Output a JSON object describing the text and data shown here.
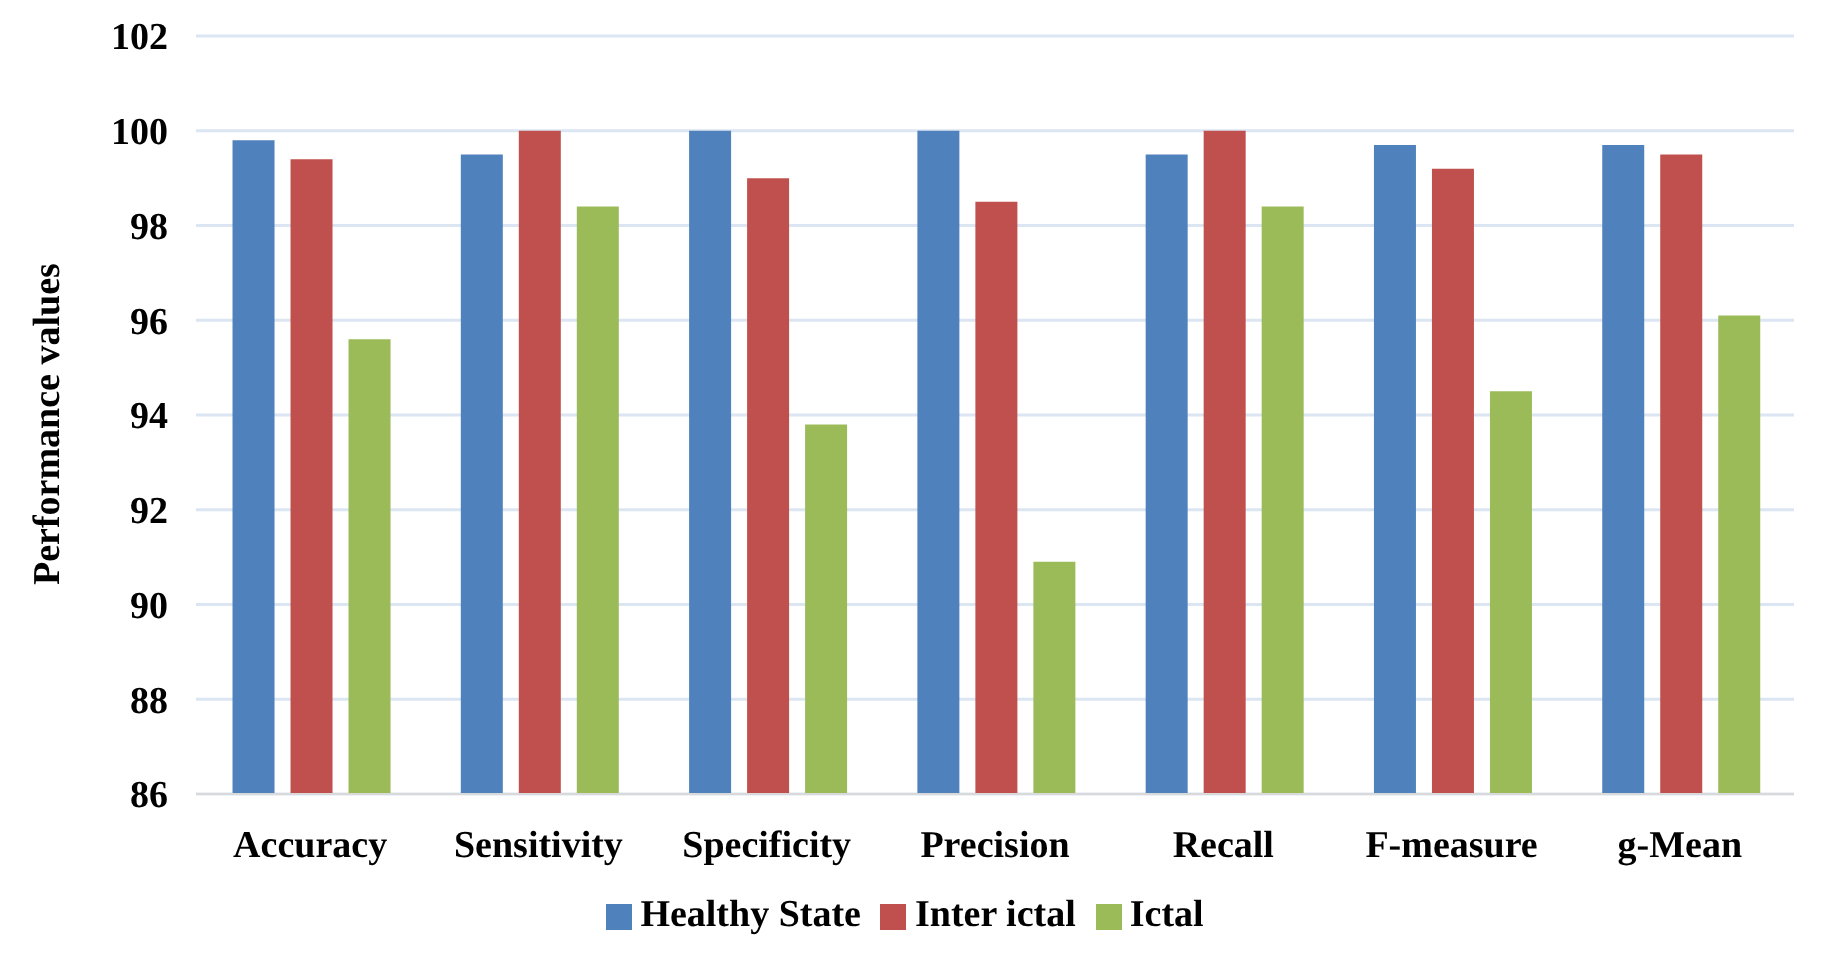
{
  "chart_data": {
    "type": "bar",
    "ylabel": "Performance values",
    "categories": [
      "Accuracy",
      "Sensitivity",
      "Specificity",
      "Precision",
      "Recall",
      "F-measure",
      "g-Mean"
    ],
    "series": [
      {
        "name": "Healthy State",
        "color": "#4f81bd",
        "values": [
          99.8,
          99.5,
          100,
          100,
          99.5,
          99.7,
          99.7
        ]
      },
      {
        "name": "Inter ictal",
        "color": "#c0504d",
        "values": [
          99.4,
          100,
          99.0,
          98.5,
          100,
          99.2,
          99.5
        ]
      },
      {
        "name": "Ictal",
        "color": "#9bbb59",
        "values": [
          95.6,
          98.4,
          93.8,
          90.9,
          98.4,
          94.5,
          96.1
        ]
      }
    ],
    "ylim": [
      86,
      102
    ],
    "yticks": [
      86,
      88,
      90,
      92,
      94,
      96,
      98,
      100,
      102
    ],
    "grid": "y",
    "legend": "bottom"
  }
}
